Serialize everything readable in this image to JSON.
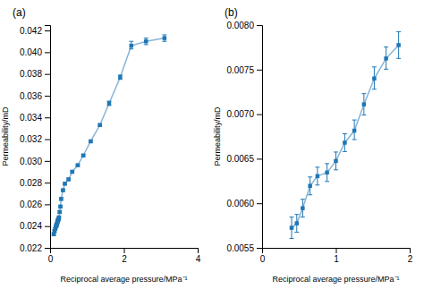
{
  "chart_data": [
    {
      "type": "line",
      "title": "(a)",
      "marker": "square",
      "x": [
        0.1,
        0.12,
        0.14,
        0.16,
        0.17,
        0.18,
        0.19,
        0.2,
        0.21,
        0.22,
        0.23,
        0.24,
        0.26,
        0.28,
        0.3,
        0.35,
        0.4,
        0.5,
        0.6,
        0.75,
        0.9,
        1.1,
        1.35,
        1.6,
        1.9,
        2.2,
        2.6,
        3.1
      ],
      "values": [
        0.02325,
        0.02355,
        0.02375,
        0.02395,
        0.02405,
        0.02415,
        0.02425,
        0.0244,
        0.0245,
        0.0246,
        0.02465,
        0.0248,
        0.0253,
        0.0258,
        0.0265,
        0.0273,
        0.0279,
        0.0283,
        0.029,
        0.0296,
        0.0305,
        0.0318,
        0.0333,
        0.0353,
        0.0377,
        0.0406,
        0.041,
        0.0413
      ],
      "yerr_low": [
        0.0001,
        0.0001,
        0.0001,
        0.0001,
        0.0001,
        0.0001,
        0.0001,
        0.0001,
        0.0001,
        0.0001,
        0.0001,
        0.0001,
        0.0001,
        0.0001,
        0.0001,
        0.0001,
        0.0001,
        0.0001,
        0.0001,
        0.0001,
        0.0001,
        0.0001,
        0.0001,
        0.0002,
        0.0002,
        0.0003,
        0.0003,
        0.0003
      ],
      "yerr_high": [
        0.0001,
        0.0001,
        0.0001,
        0.0001,
        0.0001,
        0.0001,
        0.0001,
        0.0001,
        0.0001,
        0.0001,
        0.0001,
        0.0001,
        0.0001,
        0.0001,
        0.0001,
        0.0001,
        0.0001,
        0.0001,
        0.0001,
        0.0001,
        0.0001,
        0.0001,
        0.0001,
        0.0002,
        0.0002,
        0.0004,
        0.0003,
        0.0003
      ],
      "xlim": [
        0,
        4.0
      ],
      "ylim": [
        0.022,
        0.0425
      ],
      "xticks": [
        0,
        2,
        4
      ],
      "yticks": [
        0.022,
        0.024,
        0.026,
        0.028,
        {
          "value": 0.03,
          "label": "0.030"
        },
        0.032,
        0.034,
        0.036,
        0.038,
        {
          "value": 0.04,
          "label": "0.040"
        },
        0.042
      ],
      "x_label": "Reciprocal average pressure/MPa⁻¹",
      "y_label": "Permeability/mD"
    },
    {
      "type": "line",
      "title": "(b)",
      "marker": "square",
      "x": [
        0.4,
        0.47,
        0.55,
        0.65,
        0.75,
        0.88,
        1.0,
        1.12,
        1.25,
        1.38,
        1.52,
        1.68,
        1.85
      ],
      "values": [
        0.005725,
        0.005775,
        0.005945,
        0.006195,
        0.006305,
        0.006345,
        0.006475,
        0.00668,
        0.006815,
        0.00711,
        0.0074,
        0.007625,
        0.007775
      ],
      "yerr_low": [
        0.00012,
        0.0001,
        0.0001,
        0.0001,
        0.0001,
        0.0001,
        0.0001,
        0.0001,
        0.0001,
        0.00012,
        0.00012,
        0.00012,
        0.00015
      ],
      "yerr_high": [
        0.00012,
        0.0001,
        0.0001,
        0.0001,
        0.0001,
        0.0001,
        0.0001,
        0.0001,
        0.00012,
        0.00012,
        0.00013,
        0.00013,
        0.00015
      ],
      "xlim": [
        0,
        2.0
      ],
      "ylim": [
        0.0055,
        0.008
      ],
      "xticks": [
        0,
        1,
        2
      ],
      "yticks": [
        0.0055,
        {
          "value": 0.006,
          "label": "0.0060"
        },
        0.0065,
        {
          "value": 0.007,
          "label": "0.0070"
        },
        0.0075,
        {
          "value": 0.008,
          "label": "0.0080"
        }
      ],
      "x_label": "Reciprocal average pressure/MPa⁻¹",
      "y_label": "Permeability/mD"
    }
  ]
}
